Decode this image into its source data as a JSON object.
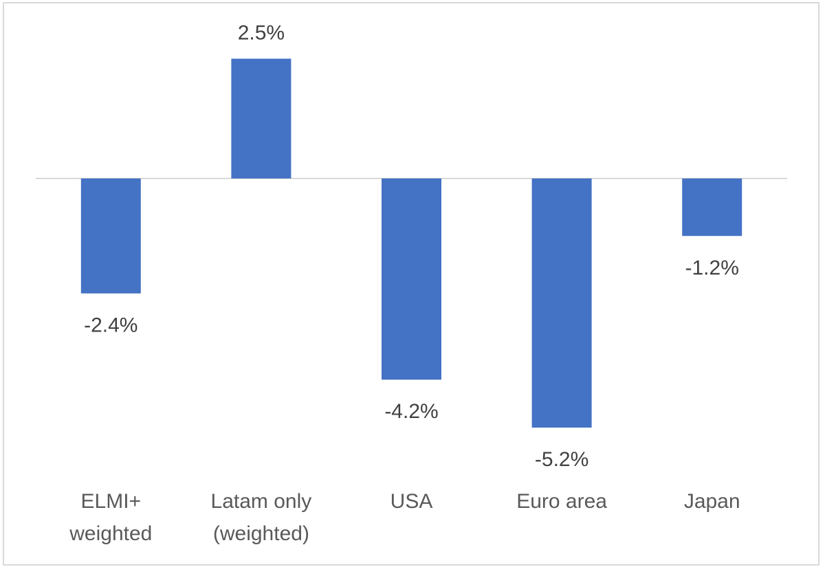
{
  "chart_data": {
    "type": "bar",
    "categories": [
      [
        "ELMI+",
        "weighted"
      ],
      [
        "Latam only",
        "(weighted)"
      ],
      [
        "USA"
      ],
      [
        "Euro area"
      ],
      [
        "Japan"
      ]
    ],
    "values": [
      -2.4,
      2.5,
      -4.2,
      -5.2,
      -1.2
    ],
    "data_labels": [
      "-2.4%",
      "2.5%",
      "-4.2%",
      "-5.2%",
      "-1.2%"
    ],
    "title": "",
    "xlabel": "",
    "ylabel": "",
    "ylim": [
      -5.2,
      2.5
    ],
    "grid": false,
    "legend": "none",
    "bar_color": "#4472c4",
    "axis_color": "#d9d9d9"
  }
}
